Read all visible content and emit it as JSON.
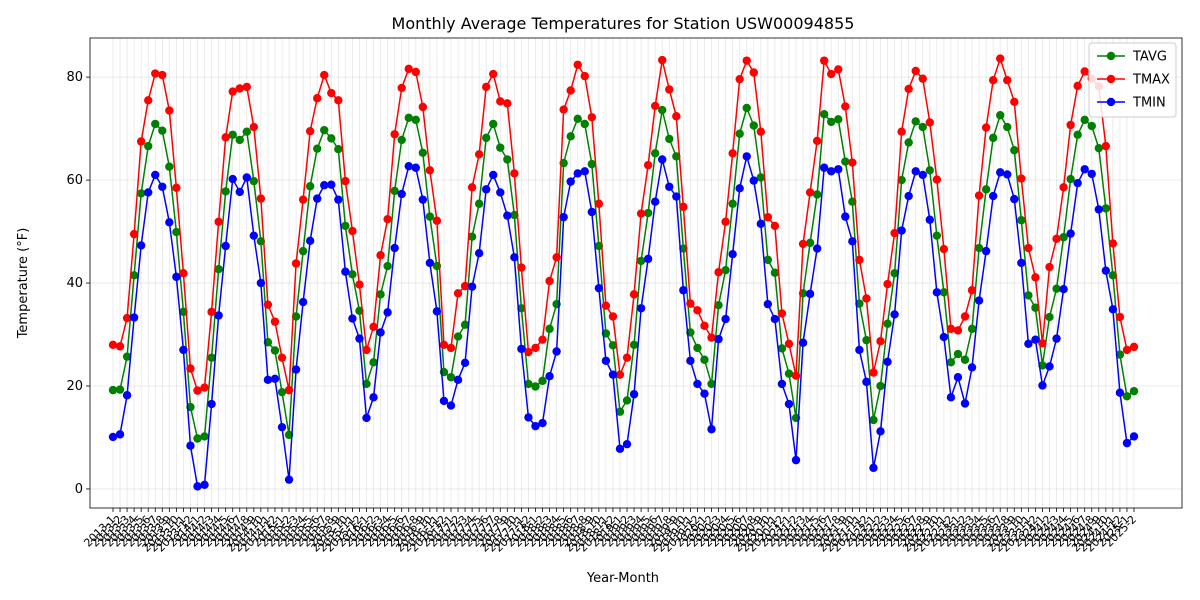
{
  "chart_data": {
    "type": "line",
    "title": "Monthly Average Temperatures for Station USW00094855",
    "xlabel": "Year-Month",
    "ylabel": "Temperature (°F)",
    "ylim": [
      -3.7,
      87.6
    ],
    "yticks": [
      0,
      20,
      40,
      60,
      80
    ],
    "grid": true,
    "legend_position": "top-right",
    "x": [
      "2013-1",
      "2013-2",
      "2013-3",
      "2013-4",
      "2013-5",
      "2013-6",
      "2013-7",
      "2013-8",
      "2013-9",
      "2013-10",
      "2013-11",
      "2013-12",
      "2014-1",
      "2014-2",
      "2014-3",
      "2014-4",
      "2014-5",
      "2014-6",
      "2014-7",
      "2014-8",
      "2014-9",
      "2014-10",
      "2014-11",
      "2014-12",
      "2015-1",
      "2015-2",
      "2015-3",
      "2015-4",
      "2015-5",
      "2015-6",
      "2015-7",
      "2015-8",
      "2015-9",
      "2015-10",
      "2015-11",
      "2015-12",
      "2016-1",
      "2016-2",
      "2016-3",
      "2016-4",
      "2016-5",
      "2016-6",
      "2016-7",
      "2016-8",
      "2016-9",
      "2016-10",
      "2016-11",
      "2016-12",
      "2017-1",
      "2017-2",
      "2017-3",
      "2017-4",
      "2017-5",
      "2017-6",
      "2017-7",
      "2017-8",
      "2017-9",
      "2017-10",
      "2017-11",
      "2017-12",
      "2018-1",
      "2018-2",
      "2018-3",
      "2018-4",
      "2018-5",
      "2018-6",
      "2018-7",
      "2018-8",
      "2018-9",
      "2018-10",
      "2018-11",
      "2018-12",
      "2019-1",
      "2019-2",
      "2019-3",
      "2019-4",
      "2019-5",
      "2019-6",
      "2019-7",
      "2019-8",
      "2019-9",
      "2019-10",
      "2019-11",
      "2019-12",
      "2020-1",
      "2020-2",
      "2020-3",
      "2020-4",
      "2020-5",
      "2020-6",
      "2020-7",
      "2020-8",
      "2020-9",
      "2020-10",
      "2020-11",
      "2020-12",
      "2021-1",
      "2021-2",
      "2021-3",
      "2021-4",
      "2021-5",
      "2021-6",
      "2021-7",
      "2021-8",
      "2021-9",
      "2021-10",
      "2021-11",
      "2021-12",
      "2022-1",
      "2022-2",
      "2022-3",
      "2022-4",
      "2022-5",
      "2022-6",
      "2022-7",
      "2022-8",
      "2022-9",
      "2022-10",
      "2022-11",
      "2022-12",
      "2023-1",
      "2023-2",
      "2023-3",
      "2023-4",
      "2023-5",
      "2023-6",
      "2023-7",
      "2023-8",
      "2023-9",
      "2023-10",
      "2023-11",
      "2023-12",
      "2024-1",
      "2024-2",
      "2024-3",
      "2024-4",
      "2024-5",
      "2024-6",
      "2024-7",
      "2024-8",
      "2024-9",
      "2024-10",
      "2024-11",
      "2024-12",
      "2025-1",
      "2025-2"
    ],
    "series": [
      {
        "name": "TAVG",
        "color": "#008000",
        "values": [
          19.2,
          19.3,
          25.7,
          41.5,
          57.4,
          66.6,
          70.9,
          69.6,
          62.6,
          49.9,
          34.4,
          15.9,
          9.8,
          10.2,
          25.5,
          42.7,
          57.8,
          68.8,
          67.8,
          69.4,
          59.8,
          48.1,
          28.5,
          26.9,
          18.8,
          10.5,
          33.5,
          46.2,
          58.8,
          66.1,
          69.7,
          68.1,
          66.0,
          51.1,
          41.7,
          34.6,
          20.4,
          24.6,
          37.8,
          43.3,
          57.9,
          67.8,
          72.1,
          71.7,
          65.3,
          52.9,
          43.3,
          22.7,
          21.7,
          29.6,
          31.9,
          49.0,
          55.4,
          68.2,
          70.9,
          66.3,
          64.0,
          53.2,
          35.1,
          20.4,
          19.9,
          21.0,
          31.1,
          35.9,
          63.3,
          68.5,
          71.9,
          70.9,
          63.1,
          47.2,
          30.2,
          27.9,
          15.0,
          17.2,
          28.0,
          44.3,
          53.6,
          65.2,
          73.6,
          68.0,
          64.6,
          46.7,
          30.4,
          27.4,
          25.1,
          20.4,
          35.7,
          42.5,
          55.4,
          69.0,
          74.0,
          70.6,
          60.5,
          44.5,
          42.0,
          27.3,
          22.4,
          13.8,
          38.0,
          47.8,
          57.2,
          72.8,
          71.3,
          71.8,
          63.6,
          55.8,
          36.0,
          28.9,
          13.4,
          20.0,
          32.1,
          41.9,
          60.0,
          67.3,
          71.4,
          70.3,
          61.9,
          49.2,
          38.2,
          24.6,
          26.2,
          25.1,
          31.1,
          46.8,
          58.2,
          68.2,
          72.6,
          70.3,
          65.8,
          52.2,
          37.6,
          35.2,
          24.0,
          33.4,
          38.9,
          48.9,
          60.2,
          68.8,
          71.7,
          70.5,
          66.2,
          54.5,
          41.5,
          26.1,
          18.0,
          19.0
        ]
      },
      {
        "name": "TMAX",
        "color": "#ff0000",
        "values": [
          28.0,
          27.7,
          33.2,
          49.5,
          67.5,
          75.5,
          80.7,
          80.4,
          73.5,
          58.5,
          41.9,
          23.4,
          19.1,
          19.7,
          34.4,
          51.9,
          68.3,
          77.2,
          77.8,
          78.1,
          70.3,
          56.4,
          35.8,
          32.5,
          25.5,
          19.2,
          43.8,
          56.2,
          69.5,
          75.9,
          80.4,
          76.9,
          75.5,
          59.8,
          50.1,
          39.7,
          27.0,
          31.5,
          45.4,
          52.4,
          68.9,
          77.9,
          81.6,
          81.0,
          74.2,
          61.9,
          52.1,
          28.0,
          27.4,
          38.0,
          39.4,
          58.6,
          65.0,
          78.1,
          80.6,
          75.3,
          74.9,
          61.3,
          43.0,
          26.6,
          27.4,
          29.0,
          40.4,
          45.0,
          73.7,
          77.4,
          82.4,
          80.2,
          72.2,
          55.4,
          35.6,
          33.5,
          22.2,
          25.5,
          37.8,
          53.5,
          62.9,
          74.4,
          83.3,
          77.6,
          72.4,
          54.8,
          36.0,
          34.7,
          31.7,
          29.4,
          42.1,
          51.9,
          65.2,
          79.6,
          83.2,
          80.9,
          69.4,
          52.8,
          51.1,
          34.1,
          28.2,
          22.0,
          47.6,
          57.6,
          67.6,
          83.2,
          80.6,
          81.5,
          74.3,
          63.4,
          44.5,
          37.0,
          22.6,
          28.7,
          39.8,
          49.7,
          69.4,
          77.7,
          81.2,
          79.7,
          71.2,
          60.1,
          46.6,
          31.1,
          30.8,
          33.5,
          38.6,
          57.0,
          70.2,
          79.4,
          83.6,
          79.4,
          75.2,
          60.3,
          46.8,
          41.1,
          28.3,
          43.1,
          48.6,
          58.6,
          70.7,
          78.3,
          81.1,
          79.7,
          78.2,
          66.6,
          47.7,
          33.4,
          27.0,
          27.6
        ]
      },
      {
        "name": "TMIN",
        "color": "#0000ff",
        "values": [
          10.1,
          10.6,
          18.2,
          33.3,
          47.3,
          57.6,
          61.0,
          58.7,
          51.8,
          41.2,
          27.0,
          8.4,
          0.5,
          0.8,
          16.5,
          33.7,
          47.2,
          60.2,
          57.7,
          60.5,
          49.2,
          40.0,
          21.2,
          21.4,
          12.0,
          1.8,
          23.2,
          36.3,
          48.2,
          56.4,
          59.0,
          59.1,
          56.2,
          42.2,
          33.1,
          29.2,
          13.8,
          17.8,
          30.4,
          34.3,
          46.8,
          57.3,
          62.7,
          62.4,
          56.2,
          43.9,
          34.5,
          17.1,
          16.2,
          21.2,
          24.5,
          39.3,
          45.8,
          58.2,
          61.0,
          57.6,
          53.1,
          45.0,
          27.2,
          13.9,
          12.2,
          12.8,
          21.9,
          26.7,
          52.8,
          59.7,
          61.3,
          61.7,
          53.8,
          39.0,
          24.9,
          22.2,
          7.8,
          8.7,
          18.4,
          35.1,
          44.7,
          55.8,
          64.0,
          58.7,
          56.8,
          38.6,
          24.9,
          20.4,
          18.5,
          11.6,
          29.1,
          33.0,
          45.6,
          58.4,
          64.6,
          59.9,
          51.5,
          35.9,
          33.0,
          20.4,
          16.5,
          5.6,
          28.4,
          37.9,
          46.7,
          62.4,
          61.7,
          62.1,
          52.9,
          48.1,
          27.0,
          20.8,
          4.1,
          11.2,
          24.7,
          33.9,
          50.2,
          56.9,
          61.7,
          61.0,
          52.3,
          38.2,
          29.5,
          17.8,
          21.7,
          16.6,
          23.6,
          36.6,
          46.2,
          56.9,
          61.5,
          61.1,
          56.3,
          43.9,
          28.2,
          29.0,
          20.1,
          23.8,
          29.2,
          38.8,
          49.6,
          59.4,
          62.1,
          61.2,
          54.3,
          42.4,
          34.9,
          18.7,
          8.9,
          10.2
        ]
      }
    ]
  }
}
